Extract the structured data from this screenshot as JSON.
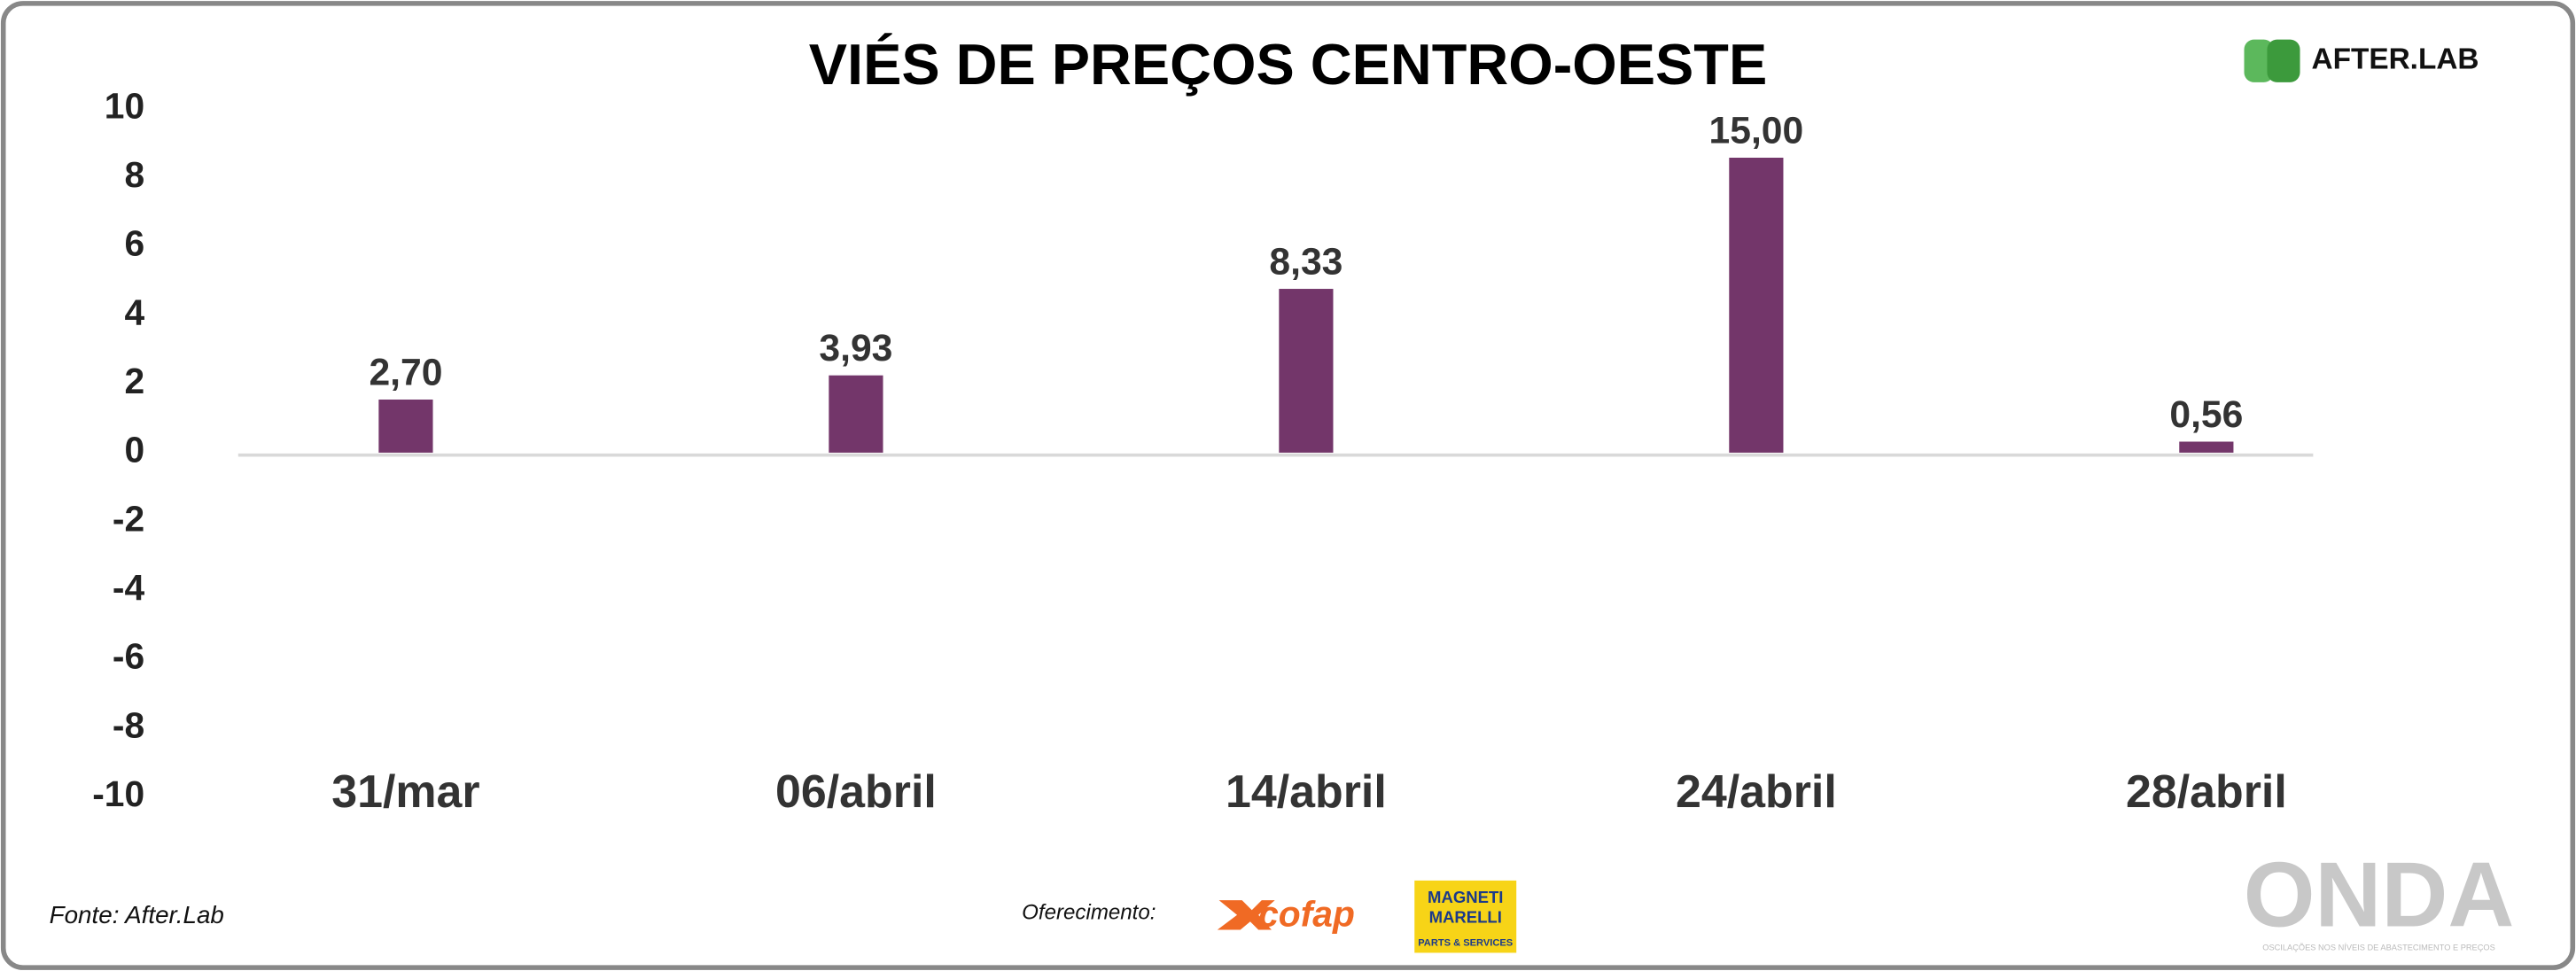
{
  "chart_data": {
    "type": "bar",
    "title": "VIÉS DE PREÇOS CENTRO-OESTE",
    "categories": [
      "31/mar",
      "06/abril",
      "14/abril",
      "24/abril",
      "28/abril"
    ],
    "values": [
      2.7,
      3.93,
      8.33,
      15,
      0.56
    ],
    "value_labels": [
      "2,70",
      "3,93",
      "8,33",
      "15,00",
      "0,56"
    ],
    "axis": "y2",
    "color": "#73366a",
    "ylim": [
      -10,
      10
    ],
    "yticks": [
      10,
      8,
      6,
      4,
      2,
      0,
      -2,
      -4,
      -6,
      -8,
      -10
    ],
    "y2lim": [
      -17.5,
      17.5
    ],
    "grid": false
  },
  "branding": {
    "logo": "AFTER.LAB",
    "source": "Fonte: After.Lab",
    "sponsor_label": "Oferecimento:",
    "sponsor_1": "cofap",
    "sponsor_2_top": "MAGNETI",
    "sponsor_2_mid": "MARELLI",
    "sponsor_2_bottom": "PARTS & SERVICES",
    "brand": "ONDA",
    "brand_tagline": "OSCILAÇÕES NOS NÍVEIS DE ABASTECIMENTO E PREÇOS"
  }
}
